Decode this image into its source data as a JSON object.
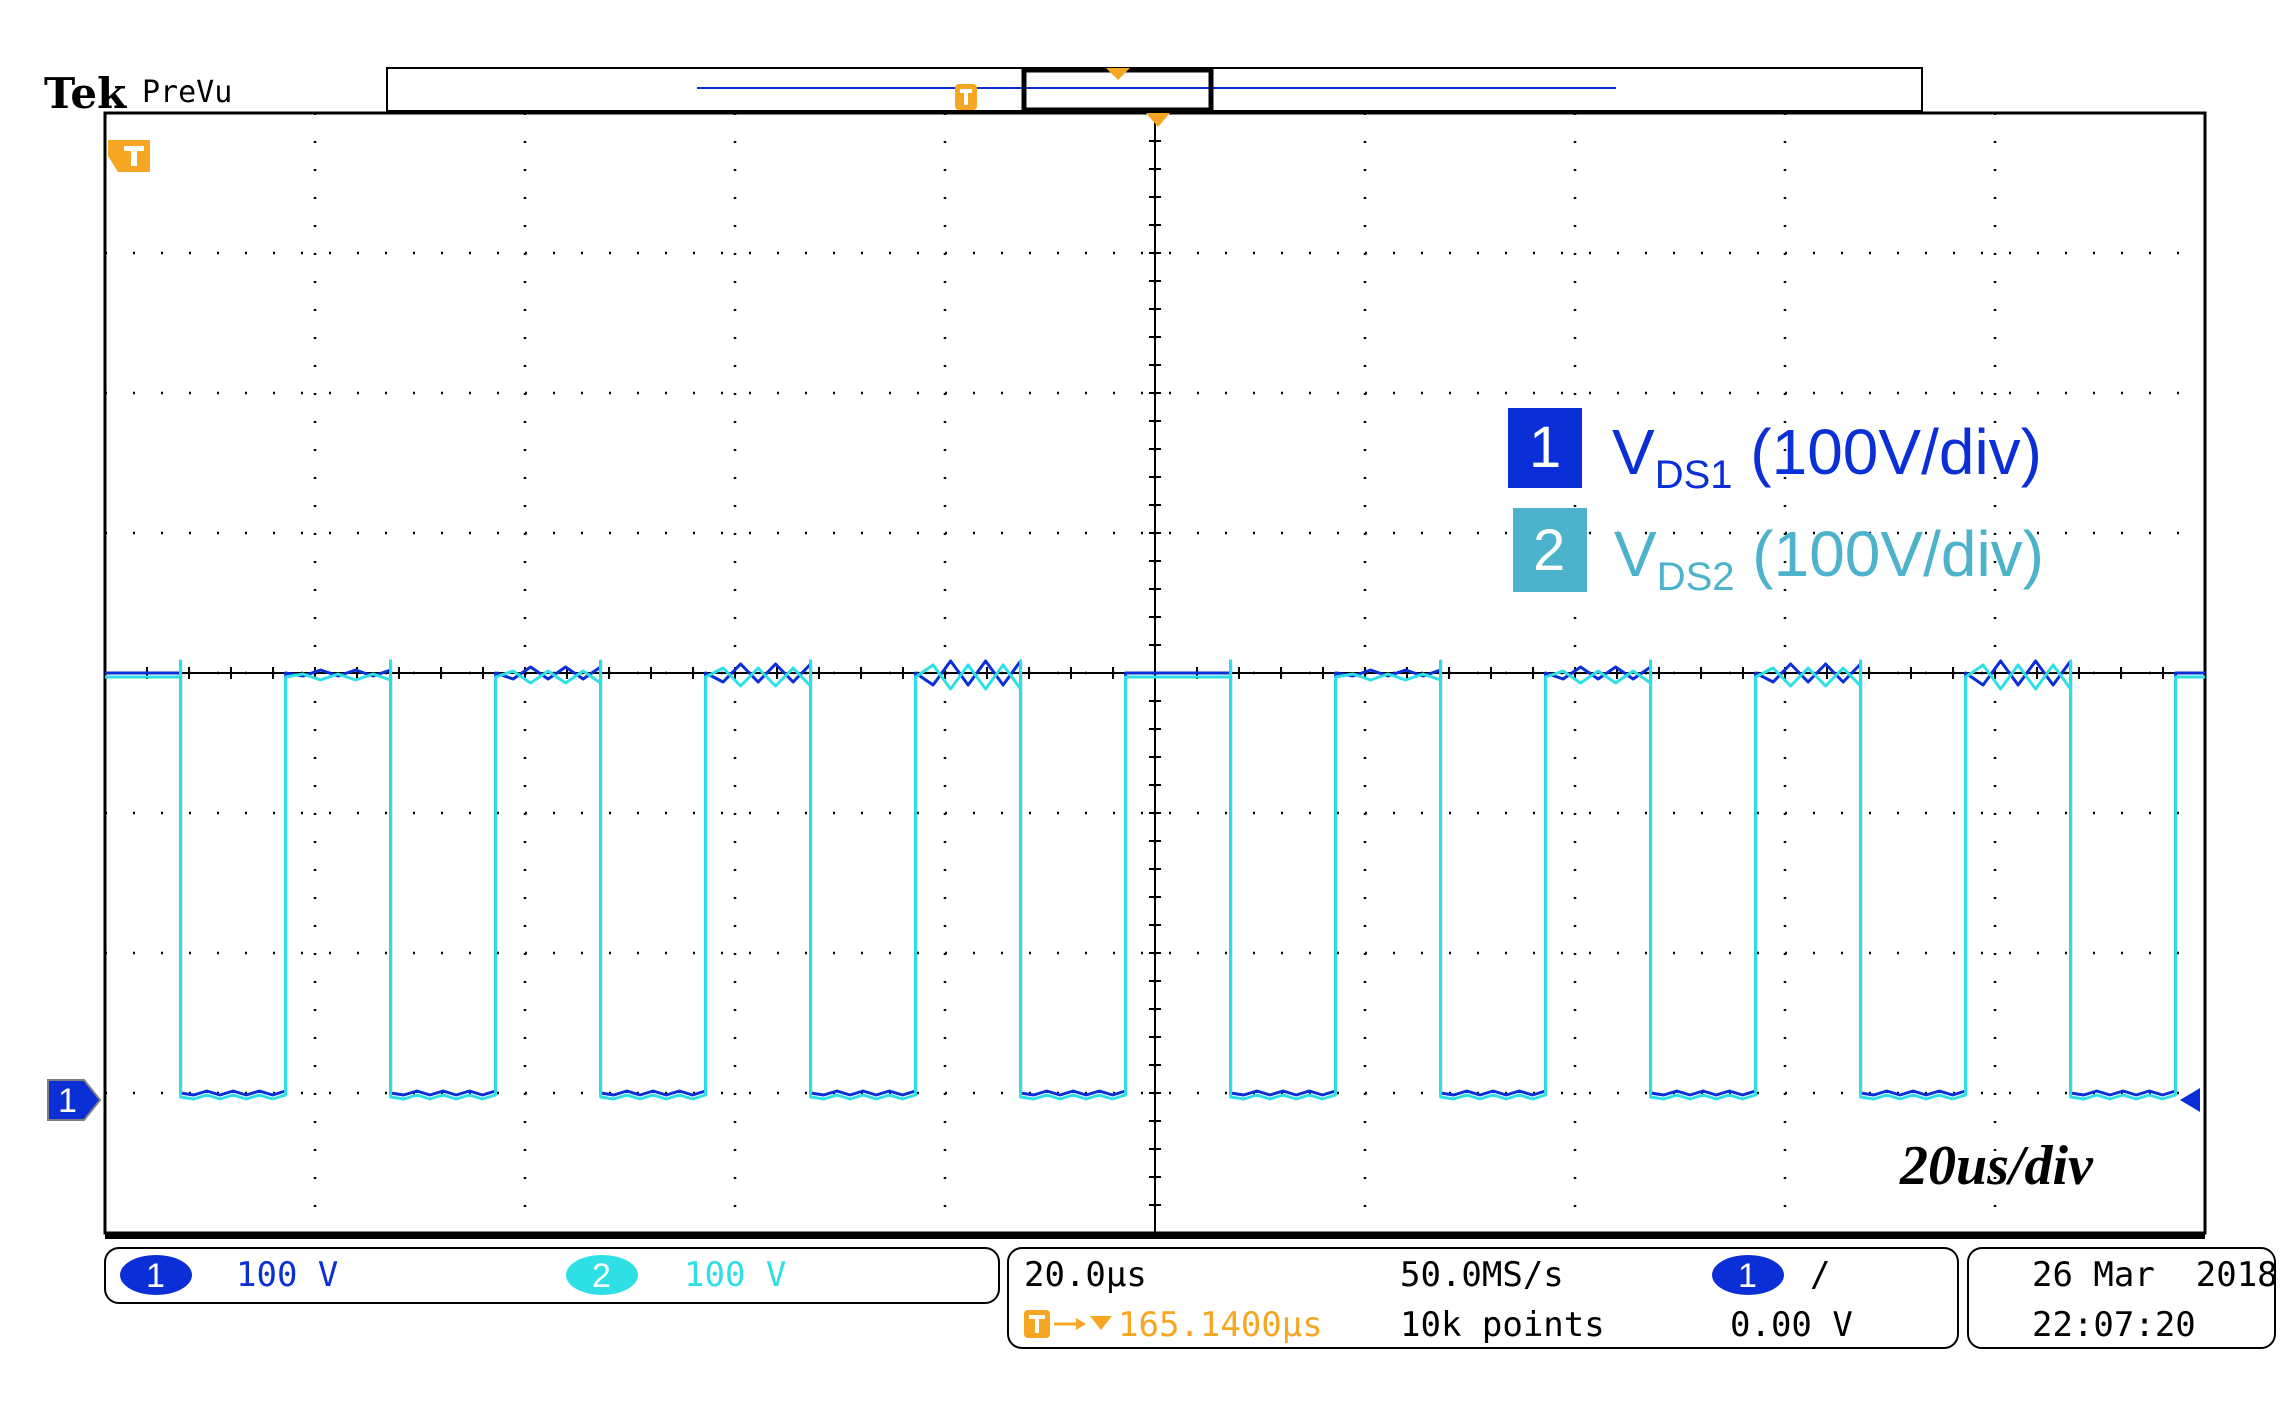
{
  "header": {
    "brand": "Tek",
    "mode": "PreVu"
  },
  "legend": {
    "ch1": {
      "number": "1",
      "label": "V",
      "sub": "DS1",
      "scale": " (100V/div)",
      "color": "#0a2fd6"
    },
    "ch2": {
      "number": "2",
      "label": "V",
      "sub": "DS2",
      "scale": " (100V/div)",
      "color": "#4db3cc"
    }
  },
  "timebase_label": "20us/div",
  "status": {
    "ch1": {
      "badge": "1",
      "scale": "100 V"
    },
    "ch2": {
      "badge": "2",
      "scale": "100 V"
    },
    "horizontal": {
      "scale": "20.0μs",
      "position": "165.1400μs"
    },
    "acquisition": {
      "rate": "50.0MS/s",
      "points": "10k points"
    },
    "trigger": {
      "badge": "1",
      "slope": "/",
      "level": "0.00 V"
    },
    "date": "26 Mar  2018",
    "time": "22:07:20"
  },
  "colors": {
    "ch1": "#0a2fd6",
    "ch2": "#2ee0e6",
    "trigger": "#f5a623",
    "grid": "#000000"
  },
  "chart_data": {
    "type": "line",
    "grid": true,
    "x_divisions": 10,
    "y_divisions": 8,
    "x_unit": "us",
    "x_range": [
      0,
      200
    ],
    "y_range_divs": [
      -4,
      4
    ],
    "period_us": 20,
    "series": [
      {
        "name": "VDS1",
        "channel": 1,
        "high_level_divs": 3,
        "low_level_divs": 0,
        "pulses": [
          {
            "fall_us": 7.2,
            "rise_us": 17.2
          },
          {
            "fall_us": 27.2,
            "rise_us": 37.2
          },
          {
            "fall_us": 47.2,
            "rise_us": 57.2
          },
          {
            "fall_us": 67.2,
            "rise_us": 77.2
          },
          {
            "fall_us": 87.2,
            "rise_us": 97.2
          },
          {
            "fall_us": 107.2,
            "rise_us": 117.2
          },
          {
            "fall_us": 127.2,
            "rise_us": 137.2
          },
          {
            "fall_us": 147.2,
            "rise_us": 157.2
          },
          {
            "fall_us": 167.2,
            "rise_us": 177.2
          },
          {
            "fall_us": 187.2,
            "rise_us": 197.2
          }
        ]
      },
      {
        "name": "VDS2",
        "channel": 2,
        "high_level_divs": 3,
        "low_level_divs": 0,
        "pulses": [
          {
            "fall_us": 7.2,
            "rise_us": 17.2
          },
          {
            "fall_us": 27.2,
            "rise_us": 37.2
          },
          {
            "fall_us": 47.2,
            "rise_us": 57.2
          },
          {
            "fall_us": 67.2,
            "rise_us": 77.2
          },
          {
            "fall_us": 87.2,
            "rise_us": 97.2
          },
          {
            "fall_us": 107.2,
            "rise_us": 117.2
          },
          {
            "fall_us": 127.2,
            "rise_us": 137.2
          },
          {
            "fall_us": 147.2,
            "rise_us": 157.2
          },
          {
            "fall_us": 167.2,
            "rise_us": 177.2
          },
          {
            "fall_us": 187.2,
            "rise_us": 197.2
          }
        ]
      }
    ]
  }
}
